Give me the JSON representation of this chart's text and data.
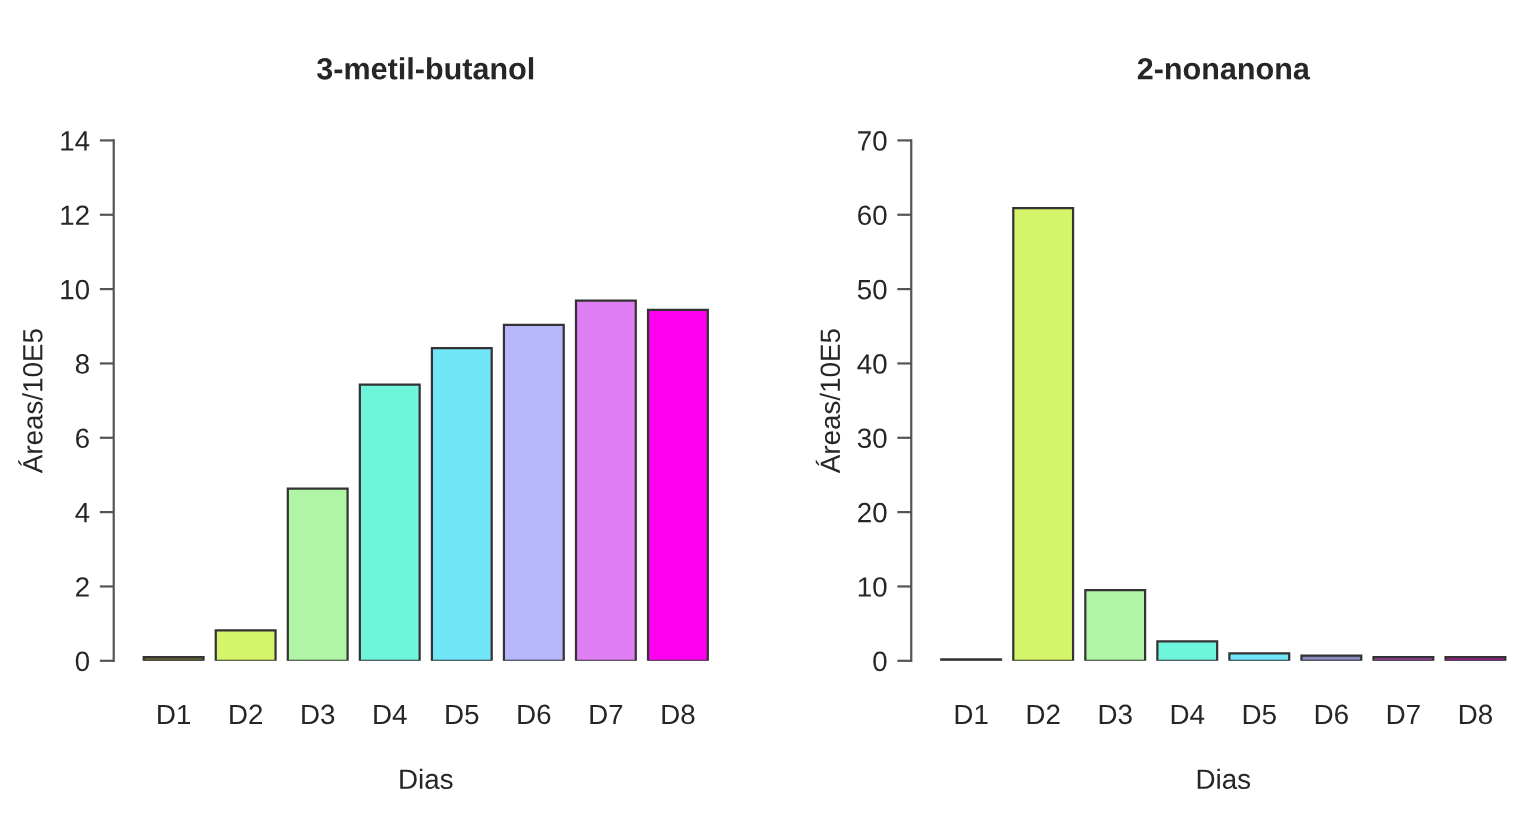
{
  "chart_data": [
    {
      "type": "bar",
      "title": "3-metil-butanol",
      "xlabel": "Dias",
      "ylabel": "Áreas/10E5",
      "categories": [
        "D1",
        "D2",
        "D3",
        "D4",
        "D5",
        "D6",
        "D7",
        "D8"
      ],
      "values": [
        0.1,
        0.82,
        4.63,
        7.43,
        8.41,
        9.04,
        9.69,
        9.44
      ],
      "colors": [
        "#6b6b30",
        "#d4f56a",
        "#b0f5a5",
        "#70f5dd",
        "#70e6f8",
        "#b7b7fc",
        "#e07ff5",
        "#ff00ee"
      ],
      "ylim": [
        0,
        14
      ],
      "yticks": [
        0,
        2,
        4,
        6,
        8,
        10,
        12,
        14
      ],
      "grid": false
    },
    {
      "type": "bar",
      "title": "2-nonanona",
      "xlabel": "Dias",
      "ylabel": "Áreas/10E5",
      "categories": [
        "D1",
        "D2",
        "D3",
        "D4",
        "D5",
        "D6",
        "D7",
        "D8"
      ],
      "values": [
        0.2,
        60.9,
        9.5,
        2.6,
        1.0,
        0.7,
        0.5,
        0.5
      ],
      "colors": [
        "#6b6b30",
        "#d4f56a",
        "#b0f5a5",
        "#70f5dd",
        "#70e6f8",
        "#8a8ac0",
        "#a040a0",
        "#a02090"
      ],
      "ylim": [
        0,
        70
      ],
      "yticks": [
        0,
        10,
        20,
        30,
        40,
        50,
        60,
        70
      ],
      "grid": false
    }
  ]
}
